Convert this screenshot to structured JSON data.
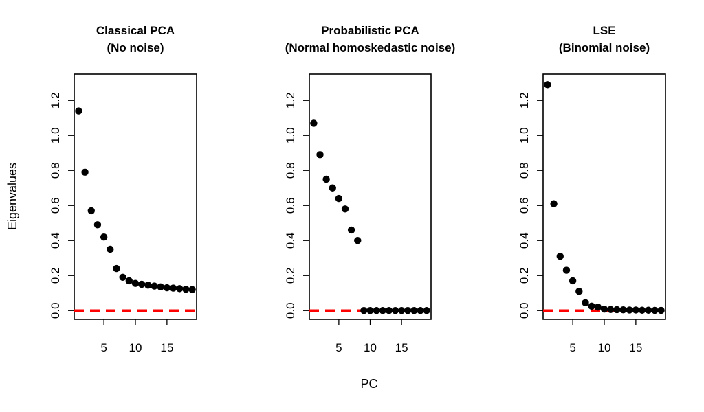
{
  "figure": {
    "xlabel": "PC",
    "ylabel": "Eigenvalues"
  },
  "chart_data": [
    {
      "type": "scatter",
      "title": "Classical PCA",
      "subtitle": "(No noise)",
      "xlabel": "PC",
      "ylabel": "Eigenvalues",
      "xlim": [
        0.3,
        19.7
      ],
      "ylim": [
        -0.05,
        1.35
      ],
      "xticks": [
        5,
        10,
        15
      ],
      "yticks": [
        0.0,
        0.2,
        0.4,
        0.6,
        0.8,
        1.0,
        1.2
      ],
      "ytick_labels": [
        "0.0",
        "0.2",
        "0.4",
        "0.6",
        "0.8",
        "1.0",
        "1.2"
      ],
      "reference_line": {
        "y": 0,
        "color": "#ff0000",
        "style": "dashed"
      },
      "point_color": "#000000",
      "x": [
        1,
        2,
        3,
        4,
        5,
        6,
        7,
        8,
        9,
        10,
        11,
        12,
        13,
        14,
        15,
        16,
        17,
        18,
        19
      ],
      "y": [
        1.14,
        0.79,
        0.57,
        0.49,
        0.42,
        0.35,
        0.24,
        0.19,
        0.17,
        0.155,
        0.15,
        0.145,
        0.14,
        0.135,
        0.13,
        0.128,
        0.125,
        0.122,
        0.12
      ]
    },
    {
      "type": "scatter",
      "title": "Probabilistic PCA",
      "subtitle": "(Normal homoskedastic noise)",
      "xlabel": "PC",
      "ylabel": "Eigenvalues",
      "xlim": [
        0.3,
        19.7
      ],
      "ylim": [
        -0.05,
        1.35
      ],
      "xticks": [
        5,
        10,
        15
      ],
      "yticks": [
        0.0,
        0.2,
        0.4,
        0.6,
        0.8,
        1.0,
        1.2
      ],
      "ytick_labels": [
        "0.0",
        "0.2",
        "0.4",
        "0.6",
        "0.8",
        "1.0",
        "1.2"
      ],
      "reference_line": {
        "y": 0,
        "color": "#ff0000",
        "style": "dashed"
      },
      "point_color": "#000000",
      "x": [
        1,
        2,
        3,
        4,
        5,
        6,
        7,
        8,
        9,
        10,
        11,
        12,
        13,
        14,
        15,
        16,
        17,
        18,
        19
      ],
      "y": [
        1.07,
        0.89,
        0.75,
        0.7,
        0.64,
        0.58,
        0.46,
        0.4,
        0,
        0,
        0,
        0,
        0,
        0,
        0,
        0,
        0,
        0,
        0
      ]
    },
    {
      "type": "scatter",
      "title": "LSE",
      "subtitle": "(Binomial noise)",
      "xlabel": "PC",
      "ylabel": "Eigenvalues",
      "xlim": [
        0.3,
        19.7
      ],
      "ylim": [
        -0.05,
        1.35
      ],
      "xticks": [
        5,
        10,
        15
      ],
      "yticks": [
        0.0,
        0.2,
        0.4,
        0.6,
        0.8,
        1.0,
        1.2
      ],
      "ytick_labels": [
        "0.0",
        "0.2",
        "0.4",
        "0.6",
        "0.8",
        "1.0",
        "1.2"
      ],
      "reference_line": {
        "y": 0,
        "color": "#ff0000",
        "style": "dashed"
      },
      "point_color": "#000000",
      "x": [
        1,
        2,
        3,
        4,
        5,
        6,
        7,
        8,
        9,
        10,
        11,
        12,
        13,
        14,
        15,
        16,
        17,
        18,
        19
      ],
      "y": [
        1.29,
        0.61,
        0.31,
        0.23,
        0.17,
        0.11,
        0.045,
        0.025,
        0.02,
        0.008,
        0.006,
        0.005,
        0.004,
        0.003,
        0.003,
        0.002,
        0.002,
        0.001,
        0.001
      ]
    }
  ]
}
